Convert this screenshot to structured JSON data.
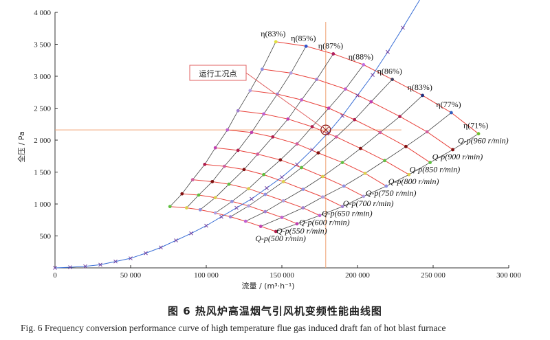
{
  "caption": {
    "chinese": "图 6   热风炉高温烟气引风机变频性能曲线图",
    "english": "Fig. 6   Frequency conversion performance curve of high temperature flue gas induced draft fan of hot blast furnace"
  },
  "chart_data": {
    "type": "line",
    "xlabel": "流量 / (m³·h⁻¹)",
    "ylabel": "全压 / Pa",
    "xlim": [
      0,
      300000
    ],
    "ylim": [
      0,
      4000
    ],
    "x_ticks": [
      0,
      50000,
      100000,
      150000,
      200000,
      250000,
      300000
    ],
    "x_tick_labels": [
      "0",
      "50 000",
      "100 000",
      "150 000",
      "200 000",
      "250 000",
      "300 000"
    ],
    "y_ticks": [
      500,
      1000,
      1500,
      2000,
      2500,
      3000,
      3500,
      4000
    ],
    "y_tick_labels": [
      "500",
      "1 000",
      "1 500",
      "2 000",
      "2 500",
      "3 000",
      "3 500",
      "4 000"
    ],
    "colors": {
      "qp": "#e8413a",
      "eff": "#444444",
      "system": "#3a6fd6",
      "guide": "#f0a070"
    },
    "qp_curves": [
      {
        "label": "Q-p(960 r/min)",
        "x": [
          146000,
          166000,
          184000,
          204000,
          223000,
          243000,
          262000,
          280000
        ],
        "y": [
          3540,
          3470,
          3350,
          3180,
          2950,
          2700,
          2430,
          2100
        ]
      },
      {
        "label": "Q-p(900 r/min)",
        "x": [
          137000,
          156000,
          173000,
          192000,
          209000,
          228000,
          246000,
          263000
        ],
        "y": [
          3110,
          3050,
          2950,
          2800,
          2600,
          2370,
          2130,
          1850
        ]
      },
      {
        "label": "Q-p(850 r/min)",
        "x": [
          129000,
          147000,
          163000,
          181000,
          198000,
          215000,
          232000,
          248000
        ],
        "y": [
          2775,
          2720,
          2630,
          2500,
          2320,
          2120,
          1900,
          1650
        ]
      },
      {
        "label": "Q-p(800 r/min)",
        "x": [
          121000,
          138000,
          154000,
          170000,
          186000,
          202000,
          218000,
          234000
        ],
        "y": [
          2460,
          2410,
          2330,
          2210,
          2050,
          1870,
          1680,
          1460
        ]
      },
      {
        "label": "Q-p(750 r/min)",
        "x": [
          114000,
          130000,
          144000,
          160000,
          174000,
          190000,
          205000,
          219000
        ],
        "y": [
          2160,
          2120,
          2050,
          1940,
          1800,
          1650,
          1480,
          1280
        ]
      },
      {
        "label": "Q-p(700 r/min)",
        "x": [
          106000,
          121000,
          134000,
          149000,
          163000,
          177000,
          191000,
          204000
        ],
        "y": [
          1880,
          1840,
          1780,
          1690,
          1570,
          1430,
          1280,
          1120
        ]
      },
      {
        "label": "Q-p(650 r/min)",
        "x": [
          99000,
          112000,
          125000,
          138000,
          151000,
          164000,
          177000,
          190000
        ],
        "y": [
          1620,
          1590,
          1540,
          1460,
          1350,
          1230,
          1110,
          960
        ]
      },
      {
        "label": "Q-p(600 r/min)",
        "x": [
          91000,
          104000,
          115000,
          128000,
          139000,
          151000,
          164000,
          175000
        ],
        "y": [
          1380,
          1350,
          1310,
          1240,
          1150,
          1050,
          940,
          820
        ]
      },
      {
        "label": "Q-p(550 r/min)",
        "x": [
          84000,
          95000,
          106000,
          117000,
          128000,
          139000,
          150000,
          160000
        ],
        "y": [
          1160,
          1140,
          1100,
          1040,
          970,
          880,
          790,
          690
        ]
      },
      {
        "label": "Q-p(500 r/min)",
        "x": [
          76000,
          87000,
          96000,
          106000,
          116000,
          126000,
          136000,
          146000
        ],
        "y": [
          960,
          940,
          910,
          860,
          800,
          730,
          650,
          570
        ]
      }
    ],
    "efficiency_labels": [
      "η(83%)",
      "η(85%)",
      "η(87%)",
      "η(88%)",
      "η(86%)",
      "η(83%)",
      "η(77%)",
      "η(71%)"
    ],
    "system_curve": {
      "x": [
        0,
        10000,
        20000,
        30000,
        40000,
        50000,
        60000,
        70000,
        80000,
        90000,
        100000,
        110000,
        120000,
        130000,
        140000,
        150000,
        160000,
        170000,
        180000,
        190000,
        200000,
        210000,
        220000,
        230000,
        240000,
        250000
      ],
      "y": [
        0,
        10,
        25,
        50,
        100,
        150,
        230,
        320,
        430,
        540,
        660,
        800,
        940,
        1080,
        1250,
        1420,
        1620,
        1850,
        2100,
        2380,
        2700,
        3020,
        3380,
        3760,
        4150,
        4560
      ]
    },
    "operating_point": {
      "label": "运行工况点",
      "x": 179000,
      "y": 2160
    }
  }
}
